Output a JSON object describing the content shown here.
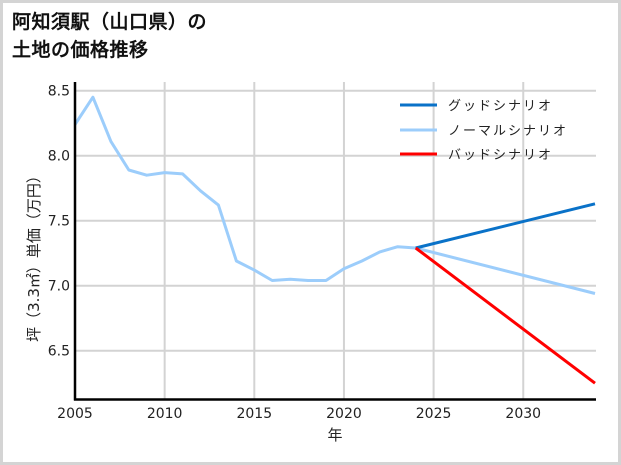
{
  "title": {
    "line1": "阿知須駅（山口県）の",
    "line2": "土地の価格推移"
  },
  "chart_data": {
    "type": "line",
    "title": "阿知須駅（山口県）の土地の価格推移",
    "xlabel": "年",
    "ylabel": "坪（3.3㎡）単価（万円）",
    "xlim": [
      2005,
      2034
    ],
    "ylim": [
      6.22,
      8.56
    ],
    "x_ticks": [
      2005,
      2010,
      2015,
      2020,
      2025,
      2030
    ],
    "y_ticks": [
      6.5,
      7.0,
      7.5,
      8.0,
      8.5
    ],
    "y_tick_labels": [
      "6.5",
      "7.0",
      "7.5",
      "8.0",
      "8.5"
    ],
    "grid": true,
    "legend_position": "upper right",
    "series": [
      {
        "name": "グッドシナリオ",
        "color": "#0a72c8",
        "x": [
          2024,
          2034
        ],
        "values": [
          7.29,
          7.63
        ]
      },
      {
        "name": "ノーマルシナリオ",
        "color": "#9ccdfb",
        "x": [
          2005,
          2006,
          2007,
          2008,
          2009,
          2010,
          2011,
          2012,
          2013,
          2014,
          2015,
          2016,
          2017,
          2018,
          2019,
          2020,
          2021,
          2022,
          2023,
          2024,
          2034
        ],
        "values": [
          8.24,
          8.45,
          8.11,
          7.89,
          7.85,
          7.87,
          7.86,
          7.73,
          7.62,
          7.19,
          7.12,
          7.04,
          7.05,
          7.04,
          7.04,
          7.13,
          7.19,
          7.26,
          7.3,
          7.29,
          6.94
        ]
      },
      {
        "name": "バッドシナリオ",
        "color": "#ff0000",
        "x": [
          2024,
          2034
        ],
        "values": [
          7.29,
          6.25
        ]
      }
    ]
  }
}
